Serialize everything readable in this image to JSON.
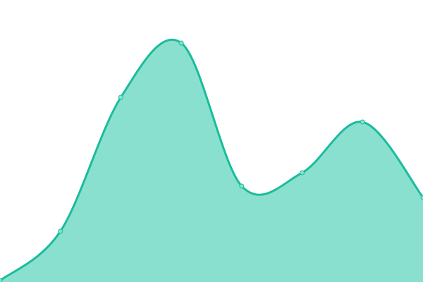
{
  "chart_data": {
    "type": "area",
    "title": "",
    "xlabel": "",
    "ylabel": "",
    "x": [
      0,
      1,
      2,
      3,
      4,
      5,
      6,
      7
    ],
    "series": [
      {
        "values": [
          2,
          72,
          262,
          339,
          136,
          155,
          227,
          120
        ]
      }
    ],
    "xlim": [
      0,
      7
    ],
    "ylim": [
      0,
      400
    ],
    "grid": false,
    "axes_visible": false,
    "smooth": true,
    "colors": {
      "line": "#1abc9c",
      "fill": "#8ae0cf",
      "marker_fill": "#8ae0cf"
    }
  }
}
